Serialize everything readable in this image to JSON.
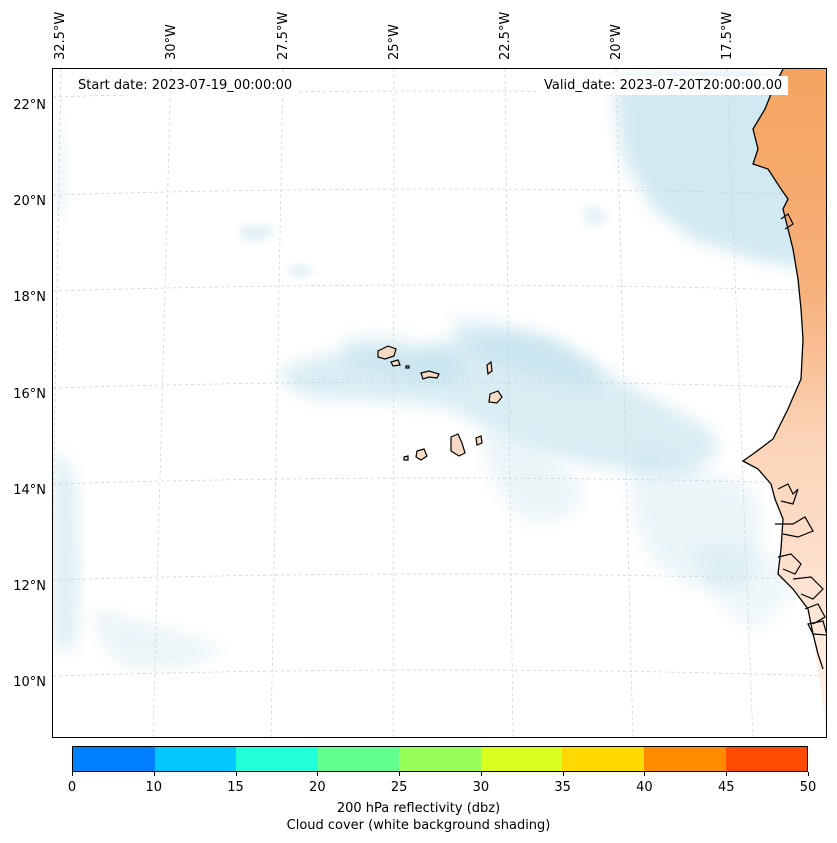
{
  "map": {
    "start_date": "Start date: 2023-07-19_00:00:00",
    "valid_date": "Valid_date: 2023-07-20T20:00:00.00",
    "longitude_labels": [
      "32.5°W",
      "30°W",
      "27.5°W",
      "25°W",
      "22.5°W",
      "20°W",
      "17.5°W"
    ],
    "latitude_labels": [
      "22°N",
      "20°N",
      "18°N",
      "16°N",
      "14°N",
      "12°N",
      "10°N"
    ],
    "islands": [
      "Santo Antão",
      "São Vicente",
      "Santa Luzia",
      "São Nicolau",
      "Sal",
      "Boa Vista",
      "Maio",
      "Santiago",
      "Fogo",
      "Brava"
    ]
  },
  "colorbar": {
    "ticks": [
      "0",
      "10",
      "15",
      "20",
      "25",
      "30",
      "35",
      "40",
      "45",
      "50"
    ],
    "colors": [
      "#0080ff",
      "#00c8ff",
      "#20ffd8",
      "#60ff90",
      "#98ff58",
      "#d8ff20",
      "#ffd800",
      "#ff8c00",
      "#ff4a00"
    ],
    "label_line1": "200 hPa reflectivity (dbz)",
    "label_line2": "Cloud cover (white background shading)"
  },
  "colors": {
    "land_cmap_high": "#f4a460",
    "land_cmap_low": "#fde8d8",
    "cloud": "#add8e6",
    "island_fill": "#f8d9c4"
  }
}
